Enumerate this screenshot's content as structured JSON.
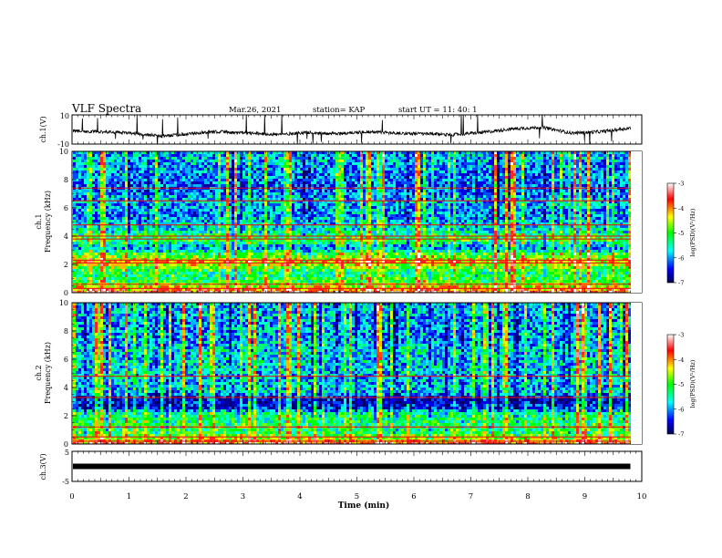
{
  "header": {
    "title": "VLF Spectra",
    "date": "Mar.26, 2021",
    "station": "station= KAP",
    "start": "start  UT =  11: 40: 1"
  },
  "chart_data": [
    {
      "type": "line",
      "panel": "ch1-waveform",
      "ylabel": "ch.1(V)",
      "ylim": [
        -10,
        10
      ],
      "xlim": [
        0,
        10
      ],
      "ytick_labels": [
        "10",
        "-10"
      ],
      "y_baseline": [
        -1.0,
        -1.5,
        -2.5,
        -4.5,
        -3.0,
        -1.5,
        -2.5,
        -3.5,
        -2.0,
        -3.0,
        -1.5,
        -2.5,
        -3.0,
        -3.5,
        -2.0,
        0.5,
        1.5,
        -2.5,
        -1.5,
        1.0
      ],
      "note": "noisy waveform with impulsive spikes to full scale"
    },
    {
      "type": "heatmap",
      "panel": "ch1-spectrogram",
      "ylabel": "ch.1\nFrequency  (kHz)",
      "ylim": [
        0,
        10
      ],
      "xlim": [
        0,
        9.8
      ],
      "ytick_labels": [
        "0",
        "2",
        "4",
        "6",
        "8",
        "10"
      ],
      "colorbar": {
        "label": "log(PSD)(V²/Hz)",
        "range": [
          -7,
          -3
        ],
        "tick_labels": [
          "-3",
          "-4",
          "-5",
          "-6",
          "-7"
        ],
        "colors": [
          "#000060",
          "#0000ff",
          "#00ffff",
          "#00ff00",
          "#ffff00",
          "#ff0000",
          "#ffffff"
        ]
      },
      "freq_profile_logpsd": [
        [
          0.0,
          -3.5
        ],
        [
          0.3,
          -4.0
        ],
        [
          0.8,
          -5.0
        ],
        [
          1.5,
          -5.3
        ],
        [
          2.2,
          -4.2
        ],
        [
          2.8,
          -5.0
        ],
        [
          3.2,
          -6.0
        ],
        [
          3.8,
          -5.0
        ],
        [
          4.5,
          -5.6
        ],
        [
          5.5,
          -6.0
        ],
        [
          6.5,
          -5.8
        ],
        [
          7.5,
          -6.2
        ],
        [
          8.5,
          -6.0
        ],
        [
          9.5,
          -5.8
        ],
        [
          10.0,
          -5.8
        ]
      ],
      "horizontal_lines_khz": [
        0.3,
        0.6,
        2.1,
        2.3,
        3.8,
        4.0,
        4.8,
        6.5,
        7.4
      ]
    },
    {
      "type": "heatmap",
      "panel": "ch2-spectrogram",
      "ylabel": "ch.2\nFrequency  (kHz)",
      "ylim": [
        0,
        10
      ],
      "xlim": [
        0,
        9.8
      ],
      "ytick_labels": [
        "0",
        "2",
        "4",
        "6",
        "8",
        "10"
      ],
      "colorbar": {
        "label": "log(PSD)(V²/Hz)",
        "range": [
          -7,
          -3
        ],
        "tick_labels": [
          "-3",
          "-4",
          "-5",
          "-6",
          "-7"
        ],
        "colors": [
          "#000060",
          "#0000ff",
          "#00ffff",
          "#00ff00",
          "#ffff00",
          "#ff0000",
          "#ffffff"
        ]
      },
      "freq_profile_logpsd": [
        [
          0.0,
          -3.5
        ],
        [
          0.3,
          -4.2
        ],
        [
          0.8,
          -5.1
        ],
        [
          1.5,
          -5.2
        ],
        [
          2.2,
          -5.4
        ],
        [
          2.6,
          -6.3
        ],
        [
          3.2,
          -6.6
        ],
        [
          3.8,
          -5.7
        ],
        [
          4.5,
          -5.8
        ],
        [
          5.5,
          -5.7
        ],
        [
          6.5,
          -5.7
        ],
        [
          7.5,
          -5.9
        ],
        [
          8.5,
          -5.9
        ],
        [
          9.5,
          -5.8
        ],
        [
          10.0,
          -5.8
        ]
      ],
      "horizontal_lines_khz": [
        0.2,
        0.5,
        1.2,
        3.3,
        4.8
      ]
    },
    {
      "type": "line",
      "panel": "ch3-trace",
      "ylabel": "ch.3(V)",
      "ylim": [
        -5,
        5
      ],
      "xlim": [
        0,
        10
      ],
      "ytick_labels": [
        "5",
        "-5"
      ],
      "y_constant": 0,
      "note": "flat thick trace near 0 V"
    }
  ],
  "xaxis": {
    "label": "Time  (min)",
    "tick_labels": [
      "0",
      "1",
      "2",
      "3",
      "4",
      "5",
      "6",
      "7",
      "8",
      "9",
      "10"
    ]
  }
}
